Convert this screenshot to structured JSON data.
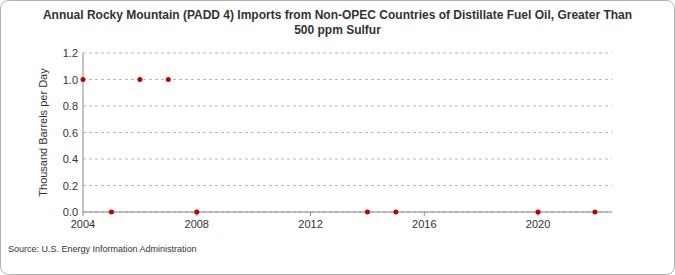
{
  "chart_data": {
    "type": "scatter",
    "title": "Annual Rocky Mountain (PADD 4) Imports from Non-OPEC Countries of Distillate Fuel Oil, Greater Than 500 ppm Sulfur",
    "y_label": "Thousand Barrels per Day",
    "source": "Source: U.S. Energy Information Administration",
    "x": [
      2004,
      2005,
      2006,
      2007,
      2008,
      2014,
      2015,
      2020,
      2022
    ],
    "values": [
      1.0,
      0.0,
      1.0,
      1.0,
      0.0,
      0.0,
      0.0,
      0.0,
      0.0
    ],
    "color": "#c00000",
    "marker": "circle",
    "xlim": [
      2004,
      2022.6
    ],
    "xticks": [
      2004,
      2008,
      2012,
      2016,
      2020
    ],
    "ylim": [
      0,
      1.2
    ],
    "yticks": [
      {
        "value": 0,
        "label": "0.0"
      },
      0.2,
      0.4,
      0.6,
      0.8,
      {
        "value": 1,
        "label": "1.0"
      },
      1.2
    ],
    "grid": true
  }
}
